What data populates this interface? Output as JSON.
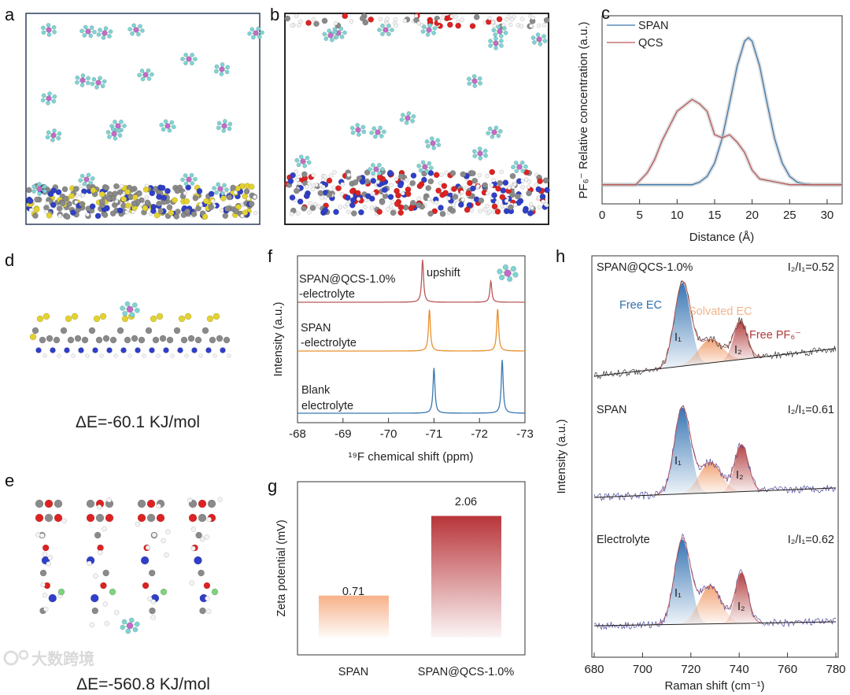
{
  "panels": {
    "a": {
      "label": "a"
    },
    "b": {
      "label": "b"
    },
    "c": {
      "label": "c"
    },
    "d": {
      "label": "d",
      "energy": "ΔE=-60.1 KJ/mol"
    },
    "e": {
      "label": "e",
      "energy": "ΔE=-560.8 KJ/mol"
    },
    "f": {
      "label": "f"
    },
    "g": {
      "label": "g"
    },
    "h": {
      "label": "h"
    }
  },
  "watermark": "大数跨境",
  "colors": {
    "span_blue": "#3a78b0",
    "qcs_red": "#b8585a",
    "orange": "#e8902c",
    "pf6_center": "#c46ac8",
    "pf6_f": "#7fd3d6"
  },
  "chart_data": [
    {
      "id": "c",
      "type": "line",
      "xlabel": "Distance (Å)",
      "ylabel": "PF₆⁻ Relative concentration (a.u.)",
      "xlim": [
        0,
        32
      ],
      "ylim": [
        -0.13,
        1.15
      ],
      "xticks": [
        "0",
        "5",
        "10",
        "15",
        "20",
        "25",
        "30"
      ],
      "legend": "top-left",
      "series": [
        {
          "name": "SPAN",
          "color": "#3a78b0",
          "points": [
            [
              0,
              0
            ],
            [
              12,
              0
            ],
            [
              13,
              0.018
            ],
            [
              14,
              0.057
            ],
            [
              15,
              0.148
            ],
            [
              16,
              0.314
            ],
            [
              17,
              0.554
            ],
            [
              18,
              0.808
            ],
            [
              19,
              0.977
            ],
            [
              19.5,
              1.0
            ],
            [
              20,
              0.977
            ],
            [
              21,
              0.808
            ],
            [
              22,
              0.554
            ],
            [
              23,
              0.314
            ],
            [
              24,
              0.148
            ],
            [
              25,
              0.057
            ],
            [
              26,
              0.018
            ],
            [
              27,
              0.005
            ],
            [
              28,
              0
            ],
            [
              32,
              0
            ]
          ]
        },
        {
          "name": "QCS",
          "color": "#b8585a",
          "points": [
            [
              0,
              0
            ],
            [
              4.5,
              0
            ],
            [
              6,
              0.08
            ],
            [
              7,
              0.17
            ],
            [
              8,
              0.3
            ],
            [
              9,
              0.4
            ],
            [
              10,
              0.5
            ],
            [
              11,
              0.54
            ],
            [
              12,
              0.58
            ],
            [
              13,
              0.55
            ],
            [
              14,
              0.5
            ],
            [
              15,
              0.34
            ],
            [
              16,
              0.32
            ],
            [
              17,
              0.34
            ],
            [
              18,
              0.29
            ],
            [
              19,
              0.22
            ],
            [
              20,
              0.1
            ],
            [
              21,
              0.04
            ],
            [
              23,
              0.02
            ],
            [
              25,
              0
            ],
            [
              32,
              0
            ]
          ]
        }
      ]
    },
    {
      "id": "f",
      "type": "line",
      "xlabel": "¹⁹F chemical shift (ppm)",
      "ylabel": "Intensity (a.u.)",
      "xlim": [
        -68,
        -73
      ],
      "xticks": [
        "-68",
        "-69",
        "-70",
        "-71",
        "-72",
        "-73"
      ],
      "annotation": "upshift",
      "series": [
        {
          "name_line1": "SPAN@QCS-1.0%",
          "name_line2": "-electrolyte",
          "color": "#b8585a",
          "peaks": [
            [
              -70.75,
              1.0
            ],
            [
              -72.25,
              0.5
            ]
          ]
        },
        {
          "name_line1": "SPAN",
          "name_line2": "-electrolyte",
          "color": "#e8902c",
          "peaks": [
            [
              -70.9,
              0.98
            ],
            [
              -72.4,
              1.0
            ]
          ]
        },
        {
          "name_line1": "Blank",
          "name_line2": "electrolyte",
          "color": "#3a78b0",
          "peaks": [
            [
              -71.0,
              1.07
            ],
            [
              -72.5,
              1.26
            ]
          ]
        }
      ]
    },
    {
      "id": "g",
      "type": "bar",
      "ylabel": "Zeta potential (mV)",
      "categories": [
        "SPAN",
        "SPAN@QCS-1.0%"
      ],
      "values": [
        0.71,
        2.06
      ],
      "value_labels": [
        "0.71",
        "2.06"
      ],
      "colors": [
        "#f6a87c",
        "#b8353a"
      ]
    },
    {
      "id": "h",
      "type": "line",
      "xlabel": "Raman shift (cm⁻¹)",
      "ylabel": "Intensity (a.u.)",
      "xlim": [
        680,
        780
      ],
      "xticks": [
        "680",
        "700",
        "720",
        "740",
        "760",
        "780"
      ],
      "component_labels": {
        "free_ec": "Free EC",
        "solvated_ec": "Solvated EC",
        "free_pf6": "Free PF₆⁻",
        "i1": "I₁",
        "i2": "I₂"
      },
      "spectra": [
        {
          "name": "SPAN@QCS-1.0%",
          "ratio": "I₂/I₁=0.52",
          "baseline": [
            0,
            0.32
          ],
          "components": [
            {
              "center": 716.5,
              "amp": 0.96,
              "sigma": 3.3,
              "color": "#2e6fb0"
            },
            {
              "center": 728,
              "amp": 0.27,
              "sigma": 5,
              "color": "#f0a070"
            },
            {
              "center": 740.5,
              "amp": 0.44,
              "sigma": 2.8,
              "color": "#b03a3a"
            }
          ]
        },
        {
          "name": "SPAN",
          "ratio": "I₂/I₁=0.61",
          "baseline": [
            0,
            0.11
          ],
          "components": [
            {
              "center": 716.5,
              "amp": 1.0,
              "sigma": 3.3,
              "color": "#2e6fb0"
            },
            {
              "center": 728,
              "amp": 0.35,
              "sigma": 4.5,
              "color": "#f0a070"
            },
            {
              "center": 741,
              "amp": 0.54,
              "sigma": 2.8,
              "color": "#b03a3a"
            }
          ]
        },
        {
          "name": "Electrolyte",
          "ratio": "I₂/I₁=0.62",
          "baseline": [
            0,
            0.045
          ],
          "components": [
            {
              "center": 716.5,
              "amp": 0.98,
              "sigma": 3.3,
              "color": "#2e6fb0"
            },
            {
              "center": 728,
              "amp": 0.44,
              "sigma": 4.5,
              "color": "#f0a070"
            },
            {
              "center": 741,
              "amp": 0.58,
              "sigma": 2.6,
              "color": "#b03a3a"
            }
          ]
        }
      ]
    }
  ]
}
